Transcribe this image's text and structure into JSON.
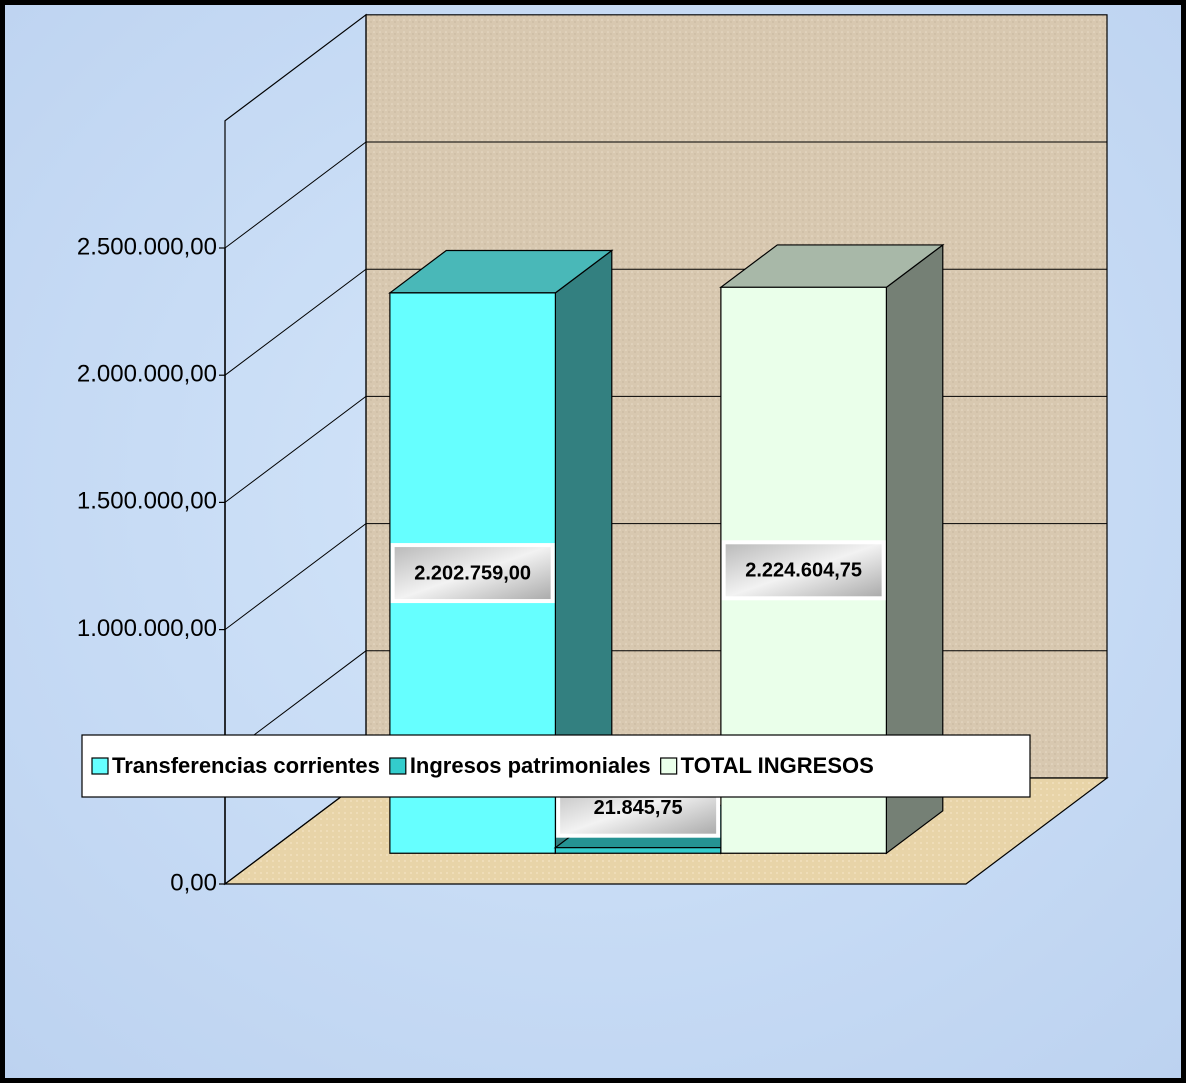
{
  "chart_data": {
    "type": "bar3d",
    "series": [
      {
        "name": "Transferencias corrientes",
        "color": "#66ffff",
        "values": [
          2202759.0
        ],
        "value_labels": [
          "2.202.759,00"
        ]
      },
      {
        "name": "Ingresos patrimoniales",
        "color": "#33cccc",
        "values": [
          21845.75
        ],
        "value_labels": [
          "21.845,75"
        ]
      },
      {
        "name": "TOTAL INGRESOS",
        "color": "#eaffea",
        "values": [
          2224604.75
        ],
        "value_labels": [
          "2.224.604,75"
        ]
      }
    ],
    "ylim": [
      0,
      3000000
    ],
    "yticks": [
      {
        "value": 0,
        "label": "0,00"
      },
      {
        "value": 500000,
        "label": "500.000,00"
      },
      {
        "value": 1000000,
        "label": "1.000.000,00"
      },
      {
        "value": 1500000,
        "label": "1.500.000,00"
      },
      {
        "value": 2000000,
        "label": "2.000.000,00"
      },
      {
        "value": 2500000,
        "label": "2.500.000,00"
      }
    ],
    "grid": true,
    "legend": "bottom"
  }
}
